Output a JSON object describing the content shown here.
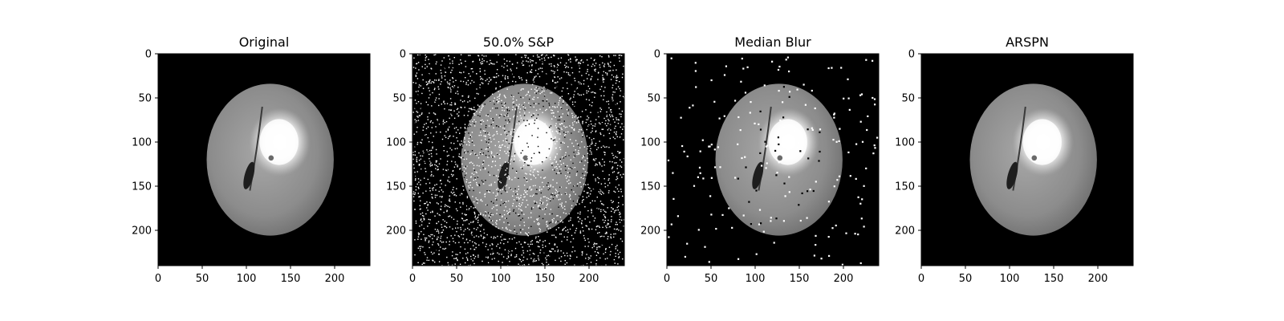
{
  "figure": {
    "panels": [
      {
        "title": "Original",
        "noise": "none"
      },
      {
        "title": "50.0% S&P",
        "noise": "heavy"
      },
      {
        "title": "Median Blur",
        "noise": "sparse"
      },
      {
        "title": "ARSPN",
        "noise": "none"
      }
    ],
    "x_ticks": [
      "0",
      "50",
      "100",
      "150",
      "200"
    ],
    "y_ticks": [
      "0",
      "50",
      "100",
      "150",
      "200"
    ],
    "image_range": [
      0,
      240
    ],
    "colormap": "gray"
  }
}
